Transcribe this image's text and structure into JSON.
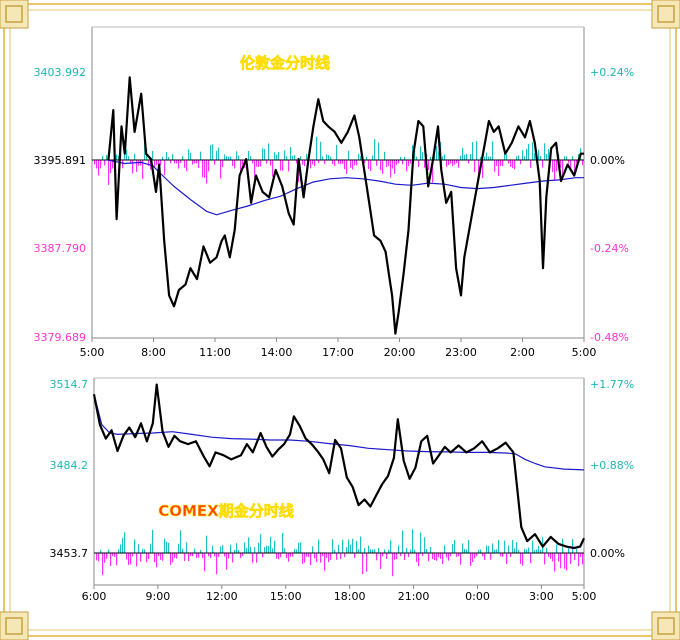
{
  "colors": {
    "border": "#d9b55a",
    "price": "#000000",
    "average": "#1a1acc",
    "positive_bar": "#20c0c0",
    "negative_bar": "#ff30ff",
    "cyan_label": "#1fb5b5",
    "magenta_label": "#ff33cc",
    "title_fill": "#ff4400",
    "title_stroke": "#ffdd00"
  },
  "chart_data": [
    {
      "type": "line",
      "title": "伦敦金分时线",
      "x_tick_labels": [
        "5:00",
        "8:00",
        "11:00",
        "14:00",
        "17:00",
        "20:00",
        "23:00",
        "2:00",
        "5:00"
      ],
      "y_tick_labels_left": [
        "3403.992",
        "3395.891",
        "3387.790",
        "3379.689"
      ],
      "y_tick_labels_right": [
        "+0.24%",
        "0.00%",
        "-0.24%",
        "-0.48%"
      ],
      "ylim": [
        3379.689,
        3403.992
      ],
      "x_range_hours": [
        0,
        24
      ],
      "reference_price": 3395.891,
      "series": [
        {
          "values_price": [
            [
              1.0,
              3395.9
            ],
            [
              1.3,
              3400.5
            ],
            [
              1.5,
              3390.5
            ],
            [
              1.8,
              3399.0
            ],
            [
              2.0,
              3396.5
            ],
            [
              2.3,
              3403.5
            ],
            [
              2.6,
              3398.5
            ],
            [
              3.0,
              3402.0
            ],
            [
              3.3,
              3396.5
            ],
            [
              3.6,
              3396.0
            ],
            [
              3.9,
              3393.0
            ],
            [
              4.1,
              3395.5
            ],
            [
              4.4,
              3388.5
            ],
            [
              4.7,
              3383.5
            ],
            [
              5.0,
              3382.5
            ],
            [
              5.3,
              3384.0
            ],
            [
              5.7,
              3384.5
            ],
            [
              6.0,
              3386.0
            ],
            [
              6.4,
              3385.0
            ],
            [
              6.8,
              3388.0
            ],
            [
              7.2,
              3386.5
            ],
            [
              7.6,
              3387.0
            ],
            [
              7.9,
              3388.5
            ],
            [
              8.1,
              3389.0
            ],
            [
              8.4,
              3387.0
            ],
            [
              8.7,
              3389.5
            ],
            [
              9.0,
              3394.5
            ],
            [
              9.4,
              3396.0
            ],
            [
              9.7,
              3392.0
            ],
            [
              10.0,
              3394.5
            ],
            [
              10.4,
              3393.0
            ],
            [
              10.8,
              3392.5
            ],
            [
              11.2,
              3395.0
            ],
            [
              11.6,
              3393.5
            ],
            [
              12.0,
              3391.0
            ],
            [
              12.3,
              3390.0
            ],
            [
              12.6,
              3396.0
            ],
            [
              12.9,
              3392.5
            ],
            [
              13.2,
              3396.0
            ],
            [
              13.5,
              3399.0
            ],
            [
              13.8,
              3401.5
            ],
            [
              14.1,
              3399.5
            ],
            [
              14.4,
              3399.0
            ],
            [
              14.8,
              3398.5
            ],
            [
              15.2,
              3397.5
            ],
            [
              15.6,
              3398.5
            ],
            [
              16.0,
              3400.0
            ],
            [
              16.3,
              3398.0
            ],
            [
              16.6,
              3395.0
            ],
            [
              16.9,
              3392.0
            ],
            [
              17.2,
              3389.0
            ],
            [
              17.6,
              3388.5
            ],
            [
              17.9,
              3387.5
            ],
            [
              18.1,
              3385.5
            ],
            [
              18.3,
              3383.5
            ],
            [
              18.5,
              3380.0
            ],
            [
              18.7,
              3382.0
            ],
            [
              19.0,
              3385.5
            ],
            [
              19.3,
              3389.5
            ],
            [
              19.6,
              3396.5
            ],
            [
              19.9,
              3399.5
            ],
            [
              20.2,
              3399.0
            ],
            [
              20.5,
              3393.5
            ],
            [
              20.8,
              3396.0
            ],
            [
              21.1,
              3399.0
            ],
            [
              21.3,
              3395.0
            ],
            [
              21.6,
              3392.0
            ],
            [
              21.9,
              3393.0
            ],
            [
              22.2,
              3386.0
            ],
            [
              22.5,
              3383.5
            ],
            [
              22.7,
              3387.0
            ],
            [
              23.0,
              3389.5
            ],
            [
              23.3,
              3392.0
            ],
            [
              23.6,
              3394.5
            ],
            [
              23.9,
              3397.0
            ],
            [
              24.2,
              3399.5
            ],
            [
              24.5,
              3398.5
            ],
            [
              24.8,
              3399.0
            ],
            [
              25.2,
              3396.5
            ],
            [
              25.6,
              3397.5
            ],
            [
              26.0,
              3399.0
            ],
            [
              26.4,
              3398.0
            ],
            [
              26.7,
              3399.5
            ],
            [
              27.0,
              3397.5
            ],
            [
              27.3,
              3394.0
            ],
            [
              27.5,
              3386.0
            ],
            [
              27.7,
              3392.5
            ],
            [
              28.0,
              3397.0
            ],
            [
              28.3,
              3397.5
            ],
            [
              28.6,
              3394.0
            ],
            [
              29.0,
              3395.5
            ],
            [
              29.4,
              3394.5
            ],
            [
              29.8,
              3396.5
            ],
            [
              30.0,
              3396.5
            ]
          ]
        },
        {
          "values_average": [
            [
              1.0,
              3395.9
            ],
            [
              2.0,
              3395.6
            ],
            [
              3.0,
              3395.7
            ],
            [
              3.7,
              3395.4
            ],
            [
              4.3,
              3394.5
            ],
            [
              5.0,
              3393.5
            ],
            [
              6.0,
              3392.3
            ],
            [
              7.0,
              3391.2
            ],
            [
              7.6,
              3390.9
            ],
            [
              8.5,
              3391.3
            ],
            [
              9.5,
              3391.7
            ],
            [
              10.5,
              3392.2
            ],
            [
              11.5,
              3392.6
            ],
            [
              12.5,
              3393.3
            ],
            [
              13.5,
              3393.9
            ],
            [
              14.5,
              3394.2
            ],
            [
              15.5,
              3394.3
            ],
            [
              16.5,
              3394.2
            ],
            [
              17.5,
              3394.0
            ],
            [
              18.5,
              3393.7
            ],
            [
              19.5,
              3393.6
            ],
            [
              20.5,
              3393.8
            ],
            [
              21.5,
              3393.7
            ],
            [
              22.5,
              3393.4
            ],
            [
              23.5,
              3393.3
            ],
            [
              24.5,
              3393.4
            ],
            [
              25.5,
              3393.6
            ],
            [
              26.5,
              3393.8
            ],
            [
              27.5,
              3394.0
            ],
            [
              28.5,
              3394.1
            ],
            [
              29.5,
              3394.3
            ],
            [
              30.0,
              3394.3
            ]
          ]
        }
      ]
    },
    {
      "type": "line",
      "title": "COMEX期金分时线",
      "x_tick_labels": [
        "6:00",
        "9:00",
        "12:00",
        "15:00",
        "18:00",
        "21:00",
        "0:00",
        "3:00",
        "5:00"
      ],
      "y_tick_labels_left": [
        "3514.7",
        "3484.2",
        "3453.7"
      ],
      "y_tick_labels_right": [
        "+1.77%",
        "+0.88%",
        "0.00%"
      ],
      "ylim": [
        3453.7,
        3514.7
      ],
      "reference_price": 3453.7,
      "series": [
        {
          "values_price": [
            [
              0.0,
              3511.0
            ],
            [
              0.3,
              3500.0
            ],
            [
              0.6,
              3495.0
            ],
            [
              0.9,
              3498.0
            ],
            [
              1.2,
              3490.5
            ],
            [
              1.5,
              3496.0
            ],
            [
              1.8,
              3499.0
            ],
            [
              2.1,
              3495.5
            ],
            [
              2.4,
              3500.5
            ],
            [
              2.7,
              3494.0
            ],
            [
              3.0,
              3500.5
            ],
            [
              3.2,
              3514.5
            ],
            [
              3.5,
              3497.5
            ],
            [
              3.8,
              3492.0
            ],
            [
              4.1,
              3496.0
            ],
            [
              4.4,
              3494.0
            ],
            [
              4.8,
              3493.0
            ],
            [
              5.2,
              3494.0
            ],
            [
              5.6,
              3488.5
            ],
            [
              5.9,
              3485.0
            ],
            [
              6.2,
              3490.0
            ],
            [
              6.6,
              3489.0
            ],
            [
              7.0,
              3487.5
            ],
            [
              7.5,
              3489.0
            ],
            [
              7.8,
              3493.0
            ],
            [
              8.1,
              3490.0
            ],
            [
              8.5,
              3497.0
            ],
            [
              8.8,
              3492.0
            ],
            [
              9.1,
              3488.5
            ],
            [
              9.4,
              3491.0
            ],
            [
              9.7,
              3493.0
            ],
            [
              10.0,
              3496.5
            ],
            [
              10.2,
              3503.0
            ],
            [
              10.5,
              3499.5
            ],
            [
              10.8,
              3495.0
            ],
            [
              11.1,
              3493.0
            ],
            [
              11.4,
              3490.5
            ],
            [
              11.7,
              3487.5
            ],
            [
              12.0,
              3482.5
            ],
            [
              12.3,
              3494.5
            ],
            [
              12.6,
              3491.5
            ],
            [
              12.9,
              3481.0
            ],
            [
              13.2,
              3477.5
            ],
            [
              13.5,
              3471.0
            ],
            [
              13.8,
              3473.0
            ],
            [
              14.1,
              3470.5
            ],
            [
              14.4,
              3474.5
            ],
            [
              14.7,
              3478.5
            ],
            [
              15.0,
              3481.5
            ],
            [
              15.3,
              3488.0
            ],
            [
              15.5,
              3502.0
            ],
            [
              15.8,
              3487.0
            ],
            [
              16.1,
              3480.5
            ],
            [
              16.4,
              3484.5
            ],
            [
              16.7,
              3494.0
            ],
            [
              17.0,
              3496.0
            ],
            [
              17.3,
              3486.0
            ],
            [
              17.6,
              3489.0
            ],
            [
              17.9,
              3492.0
            ],
            [
              18.2,
              3490.0
            ],
            [
              18.6,
              3492.5
            ],
            [
              19.0,
              3490.0
            ],
            [
              19.4,
              3491.5
            ],
            [
              19.8,
              3494.0
            ],
            [
              20.2,
              3490.0
            ],
            [
              20.6,
              3491.5
            ],
            [
              21.0,
              3493.5
            ],
            [
              21.4,
              3490.0
            ],
            [
              21.8,
              3463.0
            ],
            [
              22.1,
              3458.0
            ],
            [
              22.5,
              3460.5
            ],
            [
              22.9,
              3456.0
            ],
            [
              23.3,
              3459.5
            ],
            [
              23.7,
              3457.0
            ],
            [
              24.1,
              3456.0
            ],
            [
              24.5,
              3455.5
            ],
            [
              24.8,
              3456.0
            ],
            [
              25.0,
              3459.0
            ]
          ]
        },
        {
          "values_average": [
            [
              0.0,
              3511.0
            ],
            [
              0.4,
              3500.0
            ],
            [
              0.8,
              3497.0
            ],
            [
              1.2,
              3496.5
            ],
            [
              2.0,
              3496.8
            ],
            [
              3.0,
              3497.0
            ],
            [
              4.0,
              3497.5
            ],
            [
              5.0,
              3496.5
            ],
            [
              6.0,
              3495.5
            ],
            [
              7.0,
              3495.0
            ],
            [
              8.0,
              3494.8
            ],
            [
              9.0,
              3494.5
            ],
            [
              10.0,
              3494.5
            ],
            [
              11.0,
              3494.0
            ],
            [
              12.0,
              3493.2
            ],
            [
              13.0,
              3492.5
            ],
            [
              14.0,
              3491.5
            ],
            [
              15.0,
              3491.0
            ],
            [
              16.0,
              3490.5
            ],
            [
              17.0,
              3490.3
            ],
            [
              18.0,
              3490.2
            ],
            [
              19.0,
              3490.0
            ],
            [
              20.0,
              3490.0
            ],
            [
              21.0,
              3489.8
            ],
            [
              21.5,
              3489.5
            ],
            [
              22.0,
              3487.5
            ],
            [
              22.5,
              3486.0
            ],
            [
              23.0,
              3484.8
            ],
            [
              24.0,
              3484.0
            ],
            [
              25.0,
              3483.7
            ]
          ]
        }
      ]
    }
  ]
}
